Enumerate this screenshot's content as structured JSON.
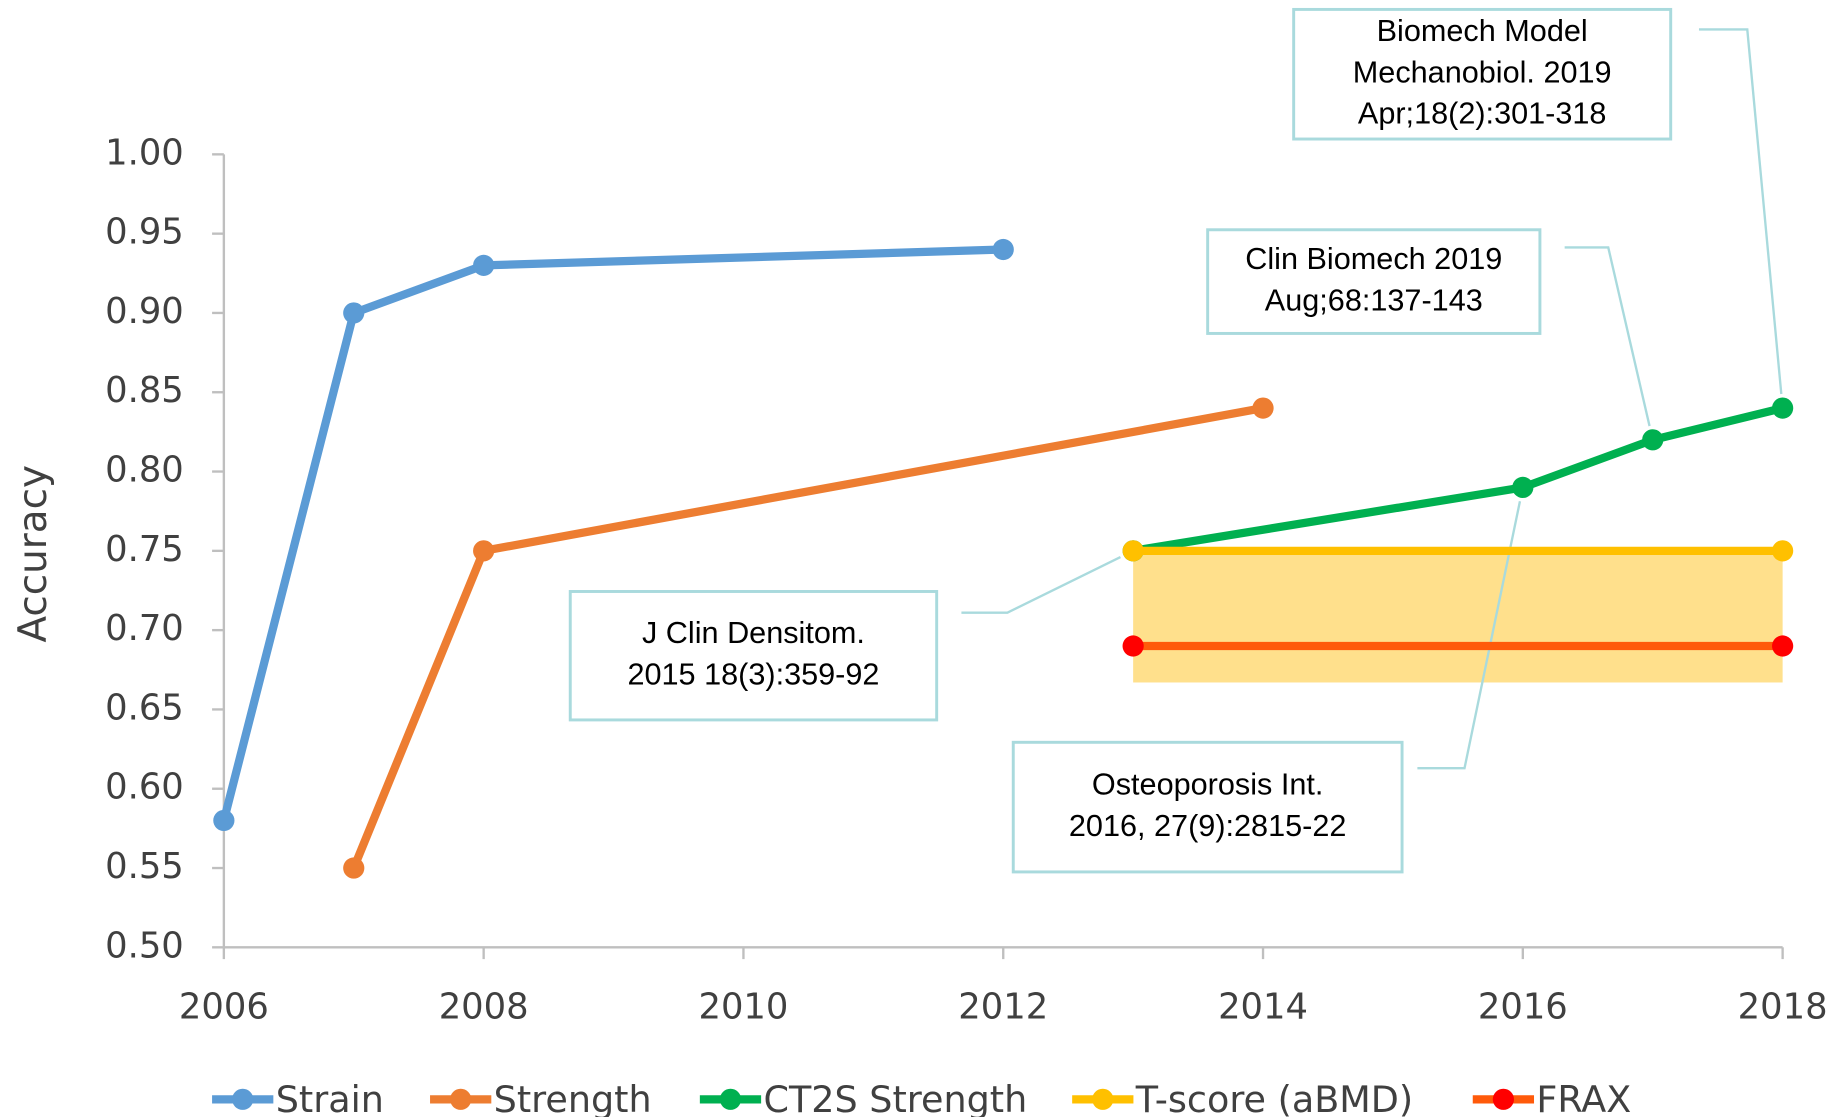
{
  "chart_data": {
    "type": "line",
    "y_label": "Accuracy",
    "xlim": [
      2006,
      2018
    ],
    "xticks": [
      2006,
      2008,
      2010,
      2012,
      2014,
      2016,
      2018
    ],
    "ylim": [
      0.5,
      1.0
    ],
    "yticks": [
      {
        "value": 0.5,
        "label": "0.50"
      },
      {
        "value": 0.55,
        "label": "0.55"
      },
      {
        "value": 0.6,
        "label": "0.60"
      },
      {
        "value": 0.65,
        "label": "0.65"
      },
      {
        "value": 0.7,
        "label": "0.70"
      },
      {
        "value": 0.75,
        "label": "0.75"
      },
      {
        "value": 0.8,
        "label": "0.80"
      },
      {
        "value": 0.85,
        "label": "0.85"
      },
      {
        "value": 0.9,
        "label": "0.90"
      },
      {
        "value": 0.95,
        "label": "0.95"
      },
      {
        "value": 1.0,
        "label": "1.00"
      }
    ],
    "grid": false,
    "legend": "bottom",
    "series": [
      {
        "name": "Strain",
        "color": "#5b9bd5",
        "x": [
          2006,
          2007,
          2008,
          2012
        ],
        "values": [
          0.58,
          0.9,
          0.93,
          0.94
        ]
      },
      {
        "name": "Strength",
        "color": "#ed7d31",
        "x": [
          2007,
          2008,
          2014
        ],
        "values": [
          0.55,
          0.75,
          0.84
        ]
      },
      {
        "name": "CT2S Strength",
        "color": "#00b050",
        "x": [
          2013,
          2016,
          2017,
          2018
        ],
        "values": [
          0.75,
          0.79,
          0.82,
          0.84
        ]
      },
      {
        "name": "T-score (aBMD)",
        "color": "#ffc000",
        "x": [
          2013,
          2018
        ],
        "values": [
          0.75,
          0.75
        ],
        "range": [
          0.667,
          0.75
        ],
        "range_color": "#ffe08c"
      },
      {
        "name": "FRAX",
        "color": "#ff5a0a",
        "marker_color": "#ff0000",
        "x": [
          2013,
          2018
        ],
        "values": [
          0.69,
          0.69
        ]
      }
    ],
    "annotations": [
      {
        "lines": [
          "Biomech Model",
          "Mechanobiol. 2019",
          "Apr;18(2):301-318"
        ]
      },
      {
        "lines": [
          "Clin Biomech 2019",
          "Aug;68:137-143"
        ]
      },
      {
        "lines": [
          "J Clin Densitom.",
          "2015 18(3):359-92"
        ]
      },
      {
        "lines": [
          "Osteoporosis Int.",
          "2016, 27(9):2815-22"
        ]
      }
    ]
  }
}
